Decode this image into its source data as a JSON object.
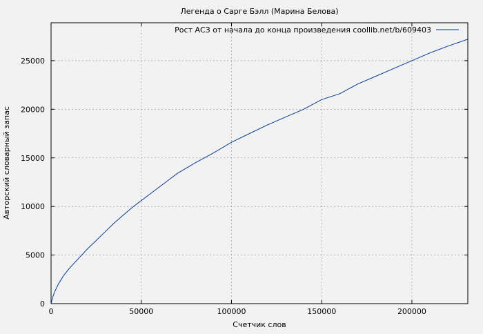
{
  "chart_data": {
    "type": "line",
    "title": "Легенда о Сарге Бэлл (Марина Белова)",
    "xlabel": "Счетчик слов",
    "ylabel": "Авторский словарный запас",
    "xlim": [
      0,
      231000
    ],
    "ylim": [
      0,
      28900
    ],
    "x_ticks": [
      0,
      50000,
      100000,
      150000,
      200000
    ],
    "y_ticks": [
      0,
      5000,
      10000,
      15000,
      20000,
      25000
    ],
    "grid": true,
    "legend_position": "top-right",
    "series": [
      {
        "name": "Рост АСЗ от начала до конца произведения coollib.net/b/609403",
        "color": "#003c9c",
        "x": [
          0,
          1000,
          2000,
          4000,
          7000,
          10000,
          15000,
          20000,
          25000,
          30000,
          35000,
          40000,
          45000,
          50000,
          55000,
          60000,
          65000,
          70000,
          80000,
          90000,
          100000,
          110000,
          120000,
          130000,
          140000,
          150000,
          160000,
          170000,
          180000,
          190000,
          200000,
          210000,
          220000,
          231000
        ],
        "y": [
          0,
          700,
          1200,
          2000,
          2900,
          3600,
          4600,
          5600,
          6500,
          7400,
          8300,
          9100,
          9900,
          10600,
          11300,
          12000,
          12700,
          13400,
          14500,
          15500,
          16600,
          17500,
          18400,
          19200,
          20000,
          21000,
          21600,
          22600,
          23400,
          24200,
          25000,
          25800,
          26500,
          27200
        ]
      }
    ]
  }
}
